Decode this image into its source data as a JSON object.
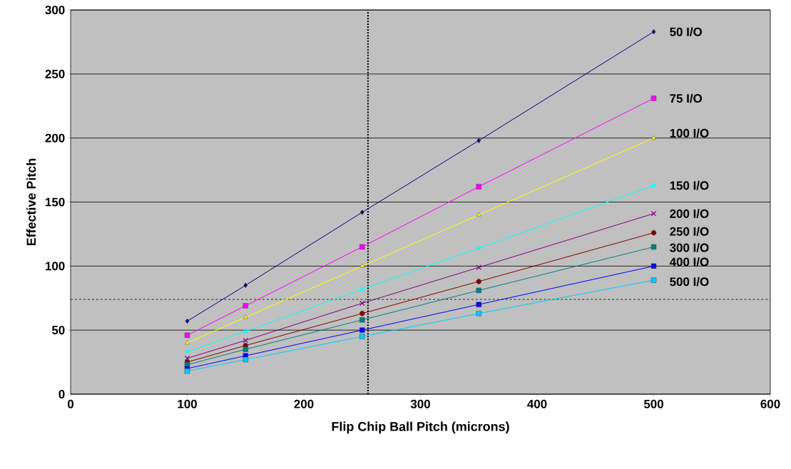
{
  "chart_data": {
    "type": "line",
    "xlabel": "Flip Chip Ball Pitch (microns)",
    "ylabel": "Effective Pitch",
    "x": [
      100,
      150,
      250,
      350,
      500
    ],
    "series": [
      {
        "name": "50 I/O",
        "color": "#000080",
        "marker": "diamond",
        "values": [
          57,
          85,
          142,
          198,
          283
        ]
      },
      {
        "name": "75 I/O",
        "color": "#ff00ff",
        "marker": "square",
        "values": [
          46,
          69,
          115,
          162,
          231
        ]
      },
      {
        "name": "100 I/O",
        "color": "#ffff00",
        "marker": "triangle",
        "values": [
          40,
          60,
          100,
          140,
          200
        ]
      },
      {
        "name": "150 I/O",
        "color": "#00ffff",
        "marker": "cross",
        "values": [
          33,
          49,
          82,
          114,
          163
        ]
      },
      {
        "name": "200 I/O",
        "color": "#800080",
        "marker": "cross",
        "values": [
          28,
          42,
          71,
          99,
          141
        ]
      },
      {
        "name": "250 I/O",
        "color": "#800000",
        "marker": "circle",
        "values": [
          25,
          38,
          63,
          88,
          126
        ]
      },
      {
        "name": "300 I/O",
        "color": "#008080",
        "marker": "square",
        "values": [
          23,
          35,
          58,
          81,
          115
        ]
      },
      {
        "name": "400 I/O",
        "color": "#0000ff",
        "marker": "square",
        "values": [
          20,
          30,
          50,
          70,
          100
        ]
      },
      {
        "name": "500 I/O",
        "color": "#00ccff",
        "marker": "square",
        "values": [
          18,
          27,
          45,
          63,
          89
        ]
      }
    ],
    "xlim": [
      0,
      600
    ],
    "xticks": [
      0,
      100,
      200,
      300,
      400,
      500,
      600
    ],
    "ylim": [
      0,
      300
    ],
    "yticks": [
      0,
      50,
      100,
      150,
      200,
      250,
      300
    ],
    "grid": "y",
    "line_style": "solid",
    "ref_lines": [
      {
        "axis": "x",
        "value": 255,
        "line_style": "dotted",
        "color": "#000000"
      },
      {
        "axis": "y",
        "value": 74,
        "line_style": "dashed",
        "color": "#000000"
      }
    ]
  }
}
